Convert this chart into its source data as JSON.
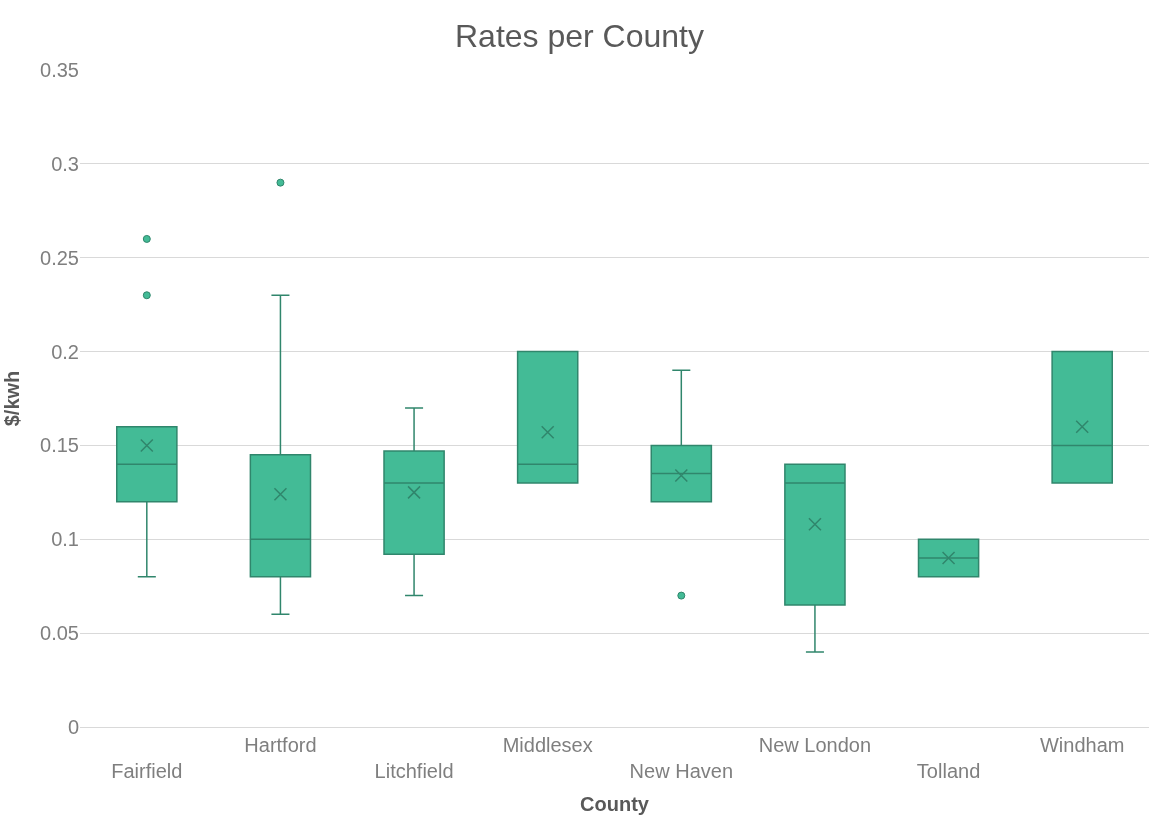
{
  "chart_data": {
    "type": "box",
    "title": "Rates per County",
    "xlabel": "County",
    "ylabel": "$/kwh",
    "categories": [
      "Fairfield",
      "Hartford",
      "Litchfield",
      "Middlesex",
      "New Haven",
      "New London",
      "Tolland",
      "Windham"
    ],
    "color": "#43bb96",
    "boxes": [
      {
        "low": 0.08,
        "q1": 0.12,
        "median": 0.14,
        "q3": 0.16,
        "high": 0.16,
        "mean": 0.15,
        "outliers": [
          0.23,
          0.26
        ]
      },
      {
        "low": 0.06,
        "q1": 0.08,
        "median": 0.1,
        "q3": 0.145,
        "high": 0.23,
        "mean": 0.124,
        "outliers": [
          0.29
        ]
      },
      {
        "low": 0.07,
        "q1": 0.092,
        "median": 0.13,
        "q3": 0.147,
        "high": 0.17,
        "mean": 0.125
      },
      {
        "low": 0.13,
        "q1": 0.13,
        "median": 0.14,
        "q3": 0.2,
        "high": 0.2,
        "mean": 0.157
      },
      {
        "low": 0.12,
        "q1": 0.12,
        "median": 0.135,
        "q3": 0.15,
        "high": 0.19,
        "mean": 0.134,
        "outliers": [
          0.07
        ]
      },
      {
        "low": 0.04,
        "q1": 0.065,
        "median": 0.13,
        "q3": 0.14,
        "high": 0.14,
        "mean": 0.108
      },
      {
        "low": 0.08,
        "q1": 0.08,
        "median": 0.09,
        "q3": 0.1,
        "high": 0.1,
        "mean": 0.09
      },
      {
        "low": 0.13,
        "q1": 0.13,
        "median": 0.15,
        "q3": 0.2,
        "high": 0.2,
        "mean": 0.16
      }
    ],
    "ylim": [
      0,
      0.35
    ],
    "yticks": [
      0,
      0.05,
      0.1,
      0.15,
      0.2,
      0.25,
      0.3,
      0.35
    ],
    "grid": "y"
  }
}
